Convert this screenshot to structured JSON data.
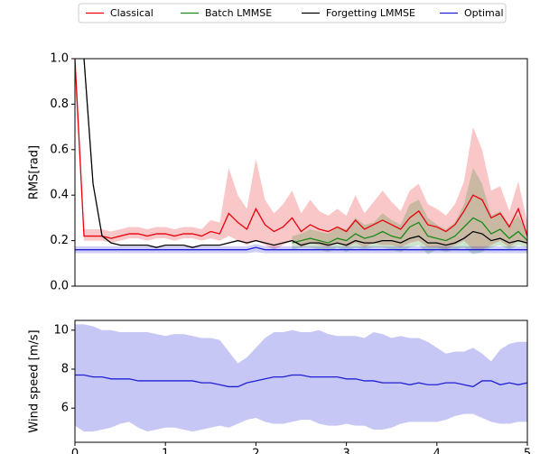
{
  "chart_data": [
    {
      "type": "line",
      "ylabel": "RMS[rad]",
      "xlim": [
        0,
        5
      ],
      "ylim": [
        0,
        1.0
      ],
      "yticks": [
        {
          "value": 0,
          "label": "0.0"
        },
        {
          "value": 0.2,
          "label": "0.2"
        },
        {
          "value": 0.4,
          "label": "0.4"
        },
        {
          "value": 0.6,
          "label": "0.6"
        },
        {
          "value": 0.8,
          "label": "0.8"
        },
        {
          "value": 1.0,
          "label": "1.0"
        }
      ],
      "x": [
        0,
        0.1,
        0.2,
        0.3,
        0.4,
        0.5,
        0.6,
        0.7,
        0.8,
        0.9,
        1.0,
        1.1,
        1.2,
        1.3,
        1.4,
        1.5,
        1.6,
        1.7,
        1.8,
        1.9,
        2.0,
        2.1,
        2.2,
        2.3,
        2.4,
        2.5,
        2.6,
        2.7,
        2.8,
        2.9,
        3.0,
        3.1,
        3.2,
        3.3,
        3.4,
        3.5,
        3.6,
        3.7,
        3.8,
        3.9,
        4.0,
        4.1,
        4.2,
        4.3,
        4.4,
        4.5,
        4.6,
        4.7,
        4.8,
        4.9,
        5.0
      ],
      "series": [
        {
          "name": "Classical",
          "color": "#e8000b",
          "values": [
            1.0,
            0.22,
            0.22,
            0.22,
            0.21,
            0.22,
            0.23,
            0.23,
            0.22,
            0.23,
            0.23,
            0.22,
            0.23,
            0.23,
            0.22,
            0.24,
            0.23,
            0.32,
            0.28,
            0.25,
            0.34,
            0.27,
            0.24,
            0.26,
            0.3,
            0.24,
            0.27,
            0.25,
            0.24,
            0.26,
            0.24,
            0.29,
            0.25,
            0.27,
            0.29,
            0.27,
            0.25,
            0.3,
            0.33,
            0.27,
            0.26,
            0.24,
            0.27,
            0.33,
            0.4,
            0.38,
            0.3,
            0.32,
            0.26,
            0.34,
            0.22
          ],
          "lower": [
            0.9,
            0.2,
            0.2,
            0.2,
            0.19,
            0.2,
            0.21,
            0.21,
            0.2,
            0.21,
            0.21,
            0.2,
            0.21,
            0.21,
            0.2,
            0.21,
            0.2,
            0.22,
            0.2,
            0.18,
            0.2,
            0.18,
            0.16,
            0.18,
            0.2,
            0.17,
            0.19,
            0.18,
            0.17,
            0.19,
            0.17,
            0.19,
            0.17,
            0.19,
            0.18,
            0.18,
            0.17,
            0.19,
            0.2,
            0.17,
            0.17,
            0.16,
            0.18,
            0.2,
            0.16,
            0.16,
            0.18,
            0.2,
            0.17,
            0.2,
            0.18
          ],
          "upper": [
            1.0,
            0.25,
            0.25,
            0.25,
            0.24,
            0.25,
            0.26,
            0.26,
            0.25,
            0.26,
            0.26,
            0.25,
            0.26,
            0.26,
            0.25,
            0.29,
            0.28,
            0.52,
            0.4,
            0.34,
            0.56,
            0.38,
            0.32,
            0.36,
            0.42,
            0.32,
            0.38,
            0.33,
            0.31,
            0.34,
            0.31,
            0.4,
            0.32,
            0.37,
            0.42,
            0.37,
            0.33,
            0.42,
            0.45,
            0.36,
            0.34,
            0.31,
            0.36,
            0.46,
            0.7,
            0.6,
            0.42,
            0.44,
            0.33,
            0.46,
            0.28
          ]
        },
        {
          "name": "Batch LMMSE",
          "color": "#1a8a1a",
          "values": [
            null,
            null,
            null,
            null,
            null,
            null,
            null,
            null,
            null,
            null,
            null,
            null,
            null,
            null,
            null,
            null,
            null,
            null,
            null,
            null,
            null,
            null,
            null,
            null,
            0.19,
            0.2,
            0.21,
            0.2,
            0.19,
            0.21,
            0.2,
            0.23,
            0.21,
            0.22,
            0.24,
            0.22,
            0.21,
            0.26,
            0.28,
            0.22,
            0.21,
            0.2,
            0.22,
            0.26,
            0.3,
            0.28,
            0.23,
            0.25,
            0.21,
            0.24,
            0.2
          ],
          "lower": [
            null,
            null,
            null,
            null,
            null,
            null,
            null,
            null,
            null,
            null,
            null,
            null,
            null,
            null,
            null,
            null,
            null,
            null,
            null,
            null,
            null,
            null,
            null,
            null,
            0.16,
            0.17,
            0.17,
            0.16,
            0.15,
            0.17,
            0.15,
            0.17,
            0.16,
            0.17,
            0.17,
            0.16,
            0.15,
            0.17,
            0.18,
            0.14,
            0.16,
            0.15,
            0.16,
            0.17,
            0.14,
            0.15,
            0.17,
            0.18,
            0.16,
            0.18,
            0.17
          ],
          "upper": [
            null,
            null,
            null,
            null,
            null,
            null,
            null,
            null,
            null,
            null,
            null,
            null,
            null,
            null,
            null,
            null,
            null,
            null,
            null,
            null,
            null,
            null,
            null,
            null,
            0.22,
            0.23,
            0.25,
            0.24,
            0.23,
            0.26,
            0.25,
            0.3,
            0.27,
            0.28,
            0.32,
            0.29,
            0.27,
            0.36,
            0.38,
            0.3,
            0.27,
            0.25,
            0.28,
            0.36,
            0.52,
            0.45,
            0.31,
            0.33,
            0.27,
            0.31,
            0.24
          ]
        },
        {
          "name": "Forgetting LMMSE",
          "color": "#000000",
          "values": [
            null,
            1.0,
            0.45,
            0.22,
            0.19,
            0.18,
            0.18,
            0.18,
            0.18,
            0.17,
            0.18,
            0.18,
            0.18,
            0.17,
            0.18,
            0.18,
            0.18,
            0.19,
            0.2,
            0.19,
            0.2,
            0.19,
            0.18,
            0.19,
            0.2,
            0.18,
            0.19,
            0.19,
            0.18,
            0.19,
            0.18,
            0.2,
            0.19,
            0.19,
            0.2,
            0.2,
            0.19,
            0.21,
            0.22,
            0.19,
            0.19,
            0.18,
            0.19,
            0.21,
            0.24,
            0.23,
            0.2,
            0.21,
            0.19,
            0.2,
            0.19
          ]
        },
        {
          "name": "Optimal",
          "color": "#1f1fd6",
          "values": [
            0.16,
            0.16,
            0.16,
            0.16,
            0.16,
            0.16,
            0.16,
            0.16,
            0.16,
            0.16,
            0.16,
            0.16,
            0.16,
            0.16,
            0.16,
            0.16,
            0.16,
            0.16,
            0.16,
            0.16,
            0.17,
            0.16,
            0.16,
            0.16,
            0.16,
            0.16,
            0.16,
            0.16,
            0.16,
            0.16,
            0.16,
            0.16,
            0.16,
            0.16,
            0.16,
            0.16,
            0.16,
            0.16,
            0.16,
            0.16,
            0.16,
            0.16,
            0.16,
            0.16,
            0.16,
            0.16,
            0.16,
            0.16,
            0.16,
            0.16,
            0.16
          ],
          "lower": [
            0.145,
            0.145,
            0.145,
            0.145,
            0.145,
            0.145,
            0.145,
            0.145,
            0.145,
            0.145,
            0.145,
            0.145,
            0.145,
            0.145,
            0.145,
            0.145,
            0.145,
            0.145,
            0.145,
            0.145,
            0.15,
            0.145,
            0.145,
            0.145,
            0.145,
            0.145,
            0.145,
            0.145,
            0.145,
            0.145,
            0.145,
            0.145,
            0.145,
            0.145,
            0.145,
            0.145,
            0.145,
            0.145,
            0.145,
            0.145,
            0.145,
            0.145,
            0.145,
            0.145,
            0.145,
            0.145,
            0.145,
            0.145,
            0.145,
            0.145,
            0.145
          ],
          "upper": [
            0.175,
            0.175,
            0.175,
            0.175,
            0.175,
            0.175,
            0.175,
            0.175,
            0.175,
            0.175,
            0.175,
            0.175,
            0.175,
            0.175,
            0.175,
            0.175,
            0.175,
            0.175,
            0.175,
            0.175,
            0.185,
            0.175,
            0.175,
            0.175,
            0.175,
            0.175,
            0.175,
            0.175,
            0.175,
            0.175,
            0.175,
            0.175,
            0.175,
            0.175,
            0.175,
            0.175,
            0.175,
            0.175,
            0.175,
            0.175,
            0.175,
            0.175,
            0.175,
            0.175,
            0.175,
            0.175,
            0.175,
            0.175,
            0.175,
            0.175,
            0.175
          ]
        }
      ]
    },
    {
      "type": "line",
      "ylabel": "Wind speed [m/s]",
      "xlim": [
        0,
        5
      ],
      "ylim": [
        4.25,
        10.5
      ],
      "xticks": [
        0,
        1,
        2,
        3,
        4,
        5
      ],
      "yticks": [
        6,
        8,
        10
      ],
      "x": [
        0,
        0.1,
        0.2,
        0.3,
        0.4,
        0.5,
        0.6,
        0.7,
        0.8,
        0.9,
        1.0,
        1.1,
        1.2,
        1.3,
        1.4,
        1.5,
        1.6,
        1.7,
        1.8,
        1.9,
        2.0,
        2.1,
        2.2,
        2.3,
        2.4,
        2.5,
        2.6,
        2.7,
        2.8,
        2.9,
        3.0,
        3.1,
        3.2,
        3.3,
        3.4,
        3.5,
        3.6,
        3.7,
        3.8,
        3.9,
        4.0,
        4.1,
        4.2,
        4.3,
        4.4,
        4.5,
        4.6,
        4.7,
        4.8,
        4.9,
        5.0
      ],
      "series": [
        {
          "color": "#1f1fd6",
          "values": [
            7.7,
            7.7,
            7.6,
            7.6,
            7.5,
            7.5,
            7.5,
            7.4,
            7.4,
            7.4,
            7.4,
            7.4,
            7.4,
            7.4,
            7.3,
            7.3,
            7.2,
            7.1,
            7.1,
            7.3,
            7.4,
            7.5,
            7.6,
            7.6,
            7.7,
            7.7,
            7.6,
            7.6,
            7.6,
            7.6,
            7.5,
            7.5,
            7.4,
            7.4,
            7.3,
            7.3,
            7.3,
            7.2,
            7.3,
            7.2,
            7.2,
            7.3,
            7.3,
            7.2,
            7.1,
            7.4,
            7.4,
            7.2,
            7.3,
            7.2,
            7.3
          ],
          "lower": [
            5.1,
            4.8,
            4.8,
            4.9,
            5.0,
            5.2,
            5.3,
            5.0,
            4.8,
            4.9,
            5.0,
            5.0,
            4.9,
            4.8,
            4.9,
            5.0,
            5.1,
            5.0,
            5.2,
            5.4,
            5.5,
            5.3,
            5.2,
            5.2,
            5.3,
            5.4,
            5.4,
            5.2,
            5.1,
            5.1,
            5.2,
            5.1,
            5.1,
            4.9,
            4.9,
            5.0,
            5.2,
            5.3,
            5.3,
            5.3,
            5.3,
            5.4,
            5.6,
            5.7,
            5.7,
            5.5,
            5.3,
            5.2,
            5.2,
            5.3,
            5.3
          ],
          "upper": [
            10.3,
            10.3,
            10.2,
            10.0,
            10.0,
            9.9,
            9.9,
            9.9,
            9.9,
            9.8,
            9.7,
            9.8,
            9.8,
            9.7,
            9.6,
            9.6,
            9.5,
            8.9,
            8.3,
            8.6,
            9.1,
            9.6,
            9.9,
            9.9,
            10.0,
            9.9,
            9.9,
            10.0,
            9.8,
            9.7,
            9.7,
            9.7,
            9.6,
            9.9,
            9.8,
            9.6,
            9.7,
            9.6,
            9.6,
            9.4,
            9.1,
            8.8,
            8.9,
            8.9,
            9.1,
            8.8,
            8.4,
            9.0,
            9.3,
            9.4,
            9.4
          ]
        }
      ]
    }
  ]
}
